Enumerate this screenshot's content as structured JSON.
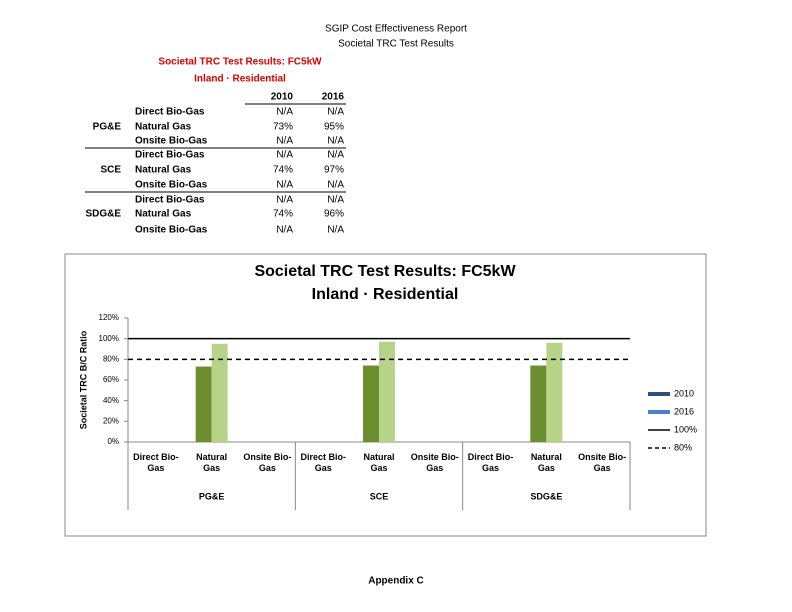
{
  "header": {
    "line1": "SGIP Cost Effectiveness Report",
    "line2": "Societal TRC Test Results"
  },
  "table": {
    "title": "Societal TRC Test Results:  FC5kW",
    "subtitle": "Inland · Residential",
    "columns": [
      "2010",
      "2016"
    ],
    "groups": [
      {
        "name": "PG&E",
        "rows": [
          {
            "label": "Direct Bio-Gas",
            "values": [
              "N/A",
              "N/A"
            ]
          },
          {
            "label": "Natural Gas",
            "values": [
              "73%",
              "95%"
            ]
          },
          {
            "label": "Onsite Bio-Gas",
            "values": [
              "N/A",
              "N/A"
            ]
          }
        ]
      },
      {
        "name": "SCE",
        "rows": [
          {
            "label": "Direct Bio-Gas",
            "values": [
              "N/A",
              "N/A"
            ]
          },
          {
            "label": "Natural Gas",
            "values": [
              "74%",
              "97%"
            ]
          },
          {
            "label": "Onsite Bio-Gas",
            "values": [
              "N/A",
              "N/A"
            ]
          }
        ]
      },
      {
        "name": "SDG&E",
        "rows": [
          {
            "label": "Direct Bio-Gas",
            "values": [
              "N/A",
              "N/A"
            ]
          },
          {
            "label": "Natural Gas",
            "values": [
              "74%",
              "96%"
            ]
          },
          {
            "label": "Onsite Bio-Gas",
            "values": [
              "N/A",
              "N/A"
            ]
          }
        ]
      }
    ]
  },
  "chart_data": {
    "type": "bar",
    "title": "Societal TRC Test Results:  FC5kW",
    "subtitle": "Inland · Residential",
    "ylabel": "Societal TRC B/C Ratio",
    "categories": [
      "Direct Bio-Gas",
      "Natural Gas",
      "Onsite Bio-Gas",
      "Direct Bio-Gas",
      "Natural Gas",
      "Onsite Bio-Gas",
      "Direct Bio-Gas",
      "Natural Gas",
      "Onsite Bio-Gas"
    ],
    "groups": [
      "PG&E",
      "SCE",
      "SDG&E"
    ],
    "series": [
      {
        "name": "2010",
        "color": "#6b8e2f",
        "legend_color": "#2f4f7f",
        "values": [
          null,
          73,
          null,
          null,
          74,
          null,
          null,
          74,
          null
        ]
      },
      {
        "name": "2016",
        "color": "#b7d387",
        "legend_color": "#4a7fd0",
        "values": [
          null,
          95,
          null,
          null,
          97,
          null,
          null,
          96,
          null
        ]
      }
    ],
    "reference_lines": [
      {
        "name": "100%",
        "value": 100,
        "style": "solid"
      },
      {
        "name": "80%",
        "value": 80,
        "style": "dashed"
      }
    ],
    "ylim": [
      0,
      120
    ],
    "yticks": [
      {
        "value": 0,
        "label": "0%"
      },
      {
        "value": 20,
        "label": "20%"
      },
      {
        "value": 40,
        "label": "40%"
      },
      {
        "value": 60,
        "label": "60%"
      },
      {
        "value": 80,
        "label": "80%"
      },
      {
        "value": 100,
        "label": "100%"
      },
      {
        "value": 120,
        "label": "120%"
      }
    ],
    "legend": "right"
  },
  "footer": "Appendix C"
}
